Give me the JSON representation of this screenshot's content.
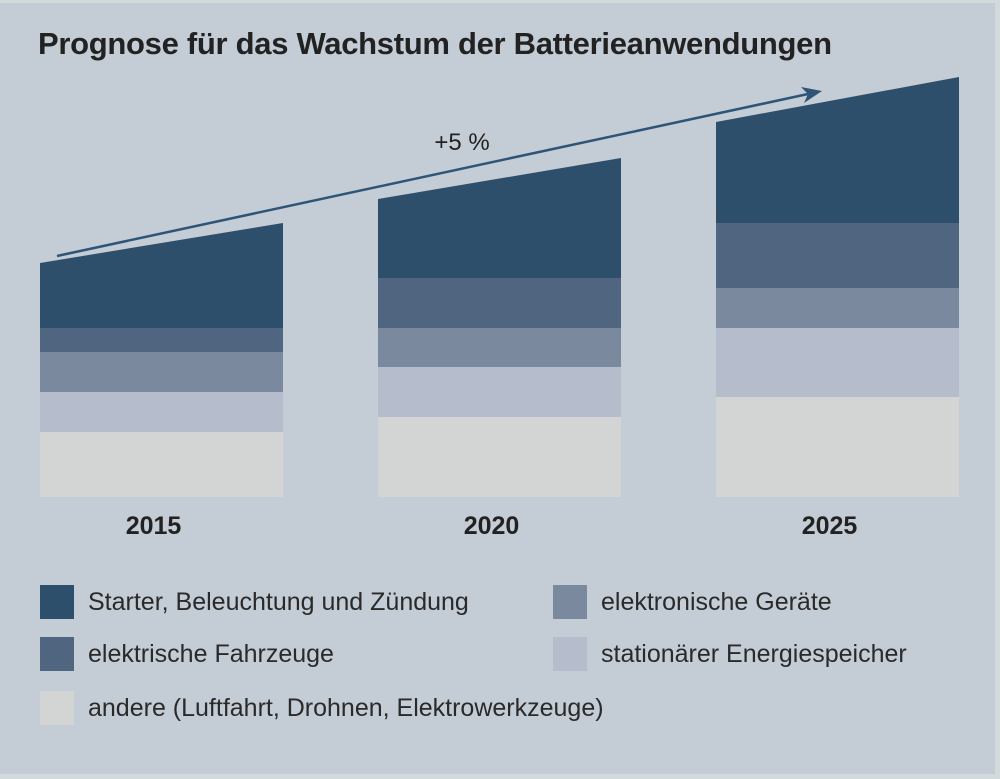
{
  "chart_data": {
    "type": "bar",
    "stacked": true,
    "title": "Prognose für das Wachstum der Batterieanwendungen",
    "categories": [
      "2015",
      "2020",
      "2025"
    ],
    "xlabel": "",
    "ylabel": "",
    "unit": "relative (no axis shown)",
    "annotation": {
      "text": "+5 %",
      "type": "trend-arrow"
    },
    "series": [
      {
        "name": "andere (Luftfahrt, Drohnen, Elektrowerkzeuge)",
        "color": "#d3d5d5",
        "values": [
          65,
          80,
          100
        ]
      },
      {
        "name": "stationärer Energiespeicher",
        "color": "#b5bccb",
        "values": [
          40,
          50,
          69
        ]
      },
      {
        "name": "elektronische Geräte",
        "color": "#7b899f",
        "values": [
          40,
          39,
          40
        ]
      },
      {
        "name": "elektrische Fahrzeuge",
        "color": "#50657f",
        "values": [
          24,
          50,
          65
        ]
      },
      {
        "name": "Starter, Beleuchtung und Zündung",
        "color": "#2e4f6c",
        "values": [
          65,
          79,
          101
        ]
      }
    ],
    "top_slope": [
      40,
      41,
      45
    ],
    "legend_position": "bottom",
    "grid": false
  },
  "legend": [
    {
      "label": "Starter, Beleuchtung und Zündung",
      "color": "#2e4f6c"
    },
    {
      "label": "elektronische Geräte",
      "color": "#7b899f"
    },
    {
      "label": "elektrische Fahrzeuge",
      "color": "#50657f"
    },
    {
      "label": "stationärer Energiespeicher",
      "color": "#b5bccb"
    },
    {
      "label": "andere (Luftfahrt, Drohnen, Elektrowerkzeuge)",
      "color": "#d3d5d5"
    }
  ],
  "colors": {
    "background": "#c4ccd5",
    "arrow": "#2e5478",
    "text": "#222222"
  }
}
